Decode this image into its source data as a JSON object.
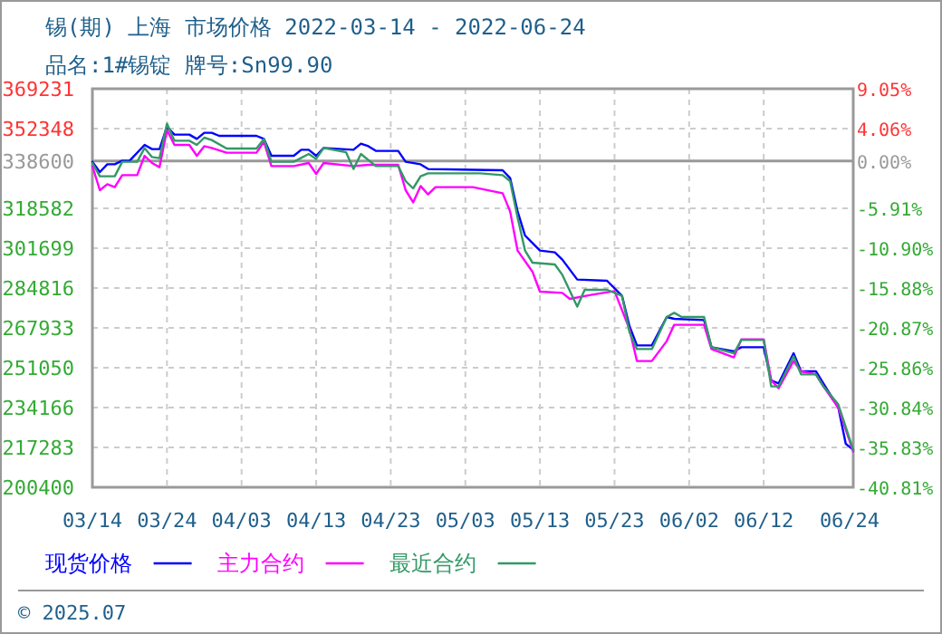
{
  "chart_data": {
    "type": "line",
    "title": "锡(期) 上海 市场价格 2022-03-14 - 2022-06-24",
    "subtitle": "品名:1#锡锭 牌号:Sn99.90",
    "xlim": [
      "2022-03-14",
      "2022-06-24"
    ],
    "xticks": [
      {
        "value": "2022-03-14",
        "label": "03/14"
      },
      {
        "value": "2022-03-24",
        "label": "03/24"
      },
      {
        "value": "2022-04-03",
        "label": "04/03"
      },
      {
        "value": "2022-04-13",
        "label": "04/13"
      },
      {
        "value": "2022-04-23",
        "label": "04/23"
      },
      {
        "value": "2022-05-03",
        "label": "05/03"
      },
      {
        "value": "2022-05-13",
        "label": "05/13"
      },
      {
        "value": "2022-05-23",
        "label": "05/23"
      },
      {
        "value": "2022-06-02",
        "label": "06/02"
      },
      {
        "value": "2022-06-12",
        "label": "06/12"
      },
      {
        "value": "2022-06-24",
        "label": "06/24"
      }
    ],
    "ylim": [
      200400,
      369231
    ],
    "yticks": [
      200400,
      217283,
      234166,
      251050,
      267933,
      284816,
      301699,
      318582,
      338600,
      352348,
      369231
    ],
    "y2lim": [
      -40.81,
      9.05
    ],
    "y2ticks": [
      {
        "value": -40.81,
        "label": "-40.81%"
      },
      {
        "value": -35.83,
        "label": "-35.83%"
      },
      {
        "value": -30.84,
        "label": "-30.84%"
      },
      {
        "value": -25.86,
        "label": "-25.86%"
      },
      {
        "value": -20.87,
        "label": "-20.87%"
      },
      {
        "value": -15.88,
        "label": "-15.88%"
      },
      {
        "value": -10.9,
        "label": "-10.90%"
      },
      {
        "value": -5.91,
        "label": "-5.91%"
      },
      {
        "value": 0,
        "label": "0.00%"
      },
      {
        "value": 4.06,
        "label": "4.06%"
      },
      {
        "value": 9.05,
        "label": "9.05%"
      }
    ],
    "grid": true,
    "legend": "bottom",
    "ref_lines": [
      {
        "axis": "y2",
        "value": 0,
        "color": "#999999"
      }
    ],
    "annotations": [
      "© 2025.07"
    ],
    "series": [
      {
        "name": "现货价格",
        "color": "#0000ff",
        "x": [
          "2022-03-14",
          "2022-03-15",
          "2022-03-16",
          "2022-03-17",
          "2022-03-18",
          "2022-03-19",
          "2022-03-21",
          "2022-03-22",
          "2022-03-23",
          "2022-03-24",
          "2022-03-25",
          "2022-03-27",
          "2022-03-28",
          "2022-03-29",
          "2022-03-30",
          "2022-03-31",
          "2022-04-05",
          "2022-04-06",
          "2022-04-07",
          "2022-04-10",
          "2022-04-11",
          "2022-04-12",
          "2022-04-13",
          "2022-04-14",
          "2022-04-18",
          "2022-04-19",
          "2022-04-20",
          "2022-04-21",
          "2022-04-24",
          "2022-04-25",
          "2022-04-27",
          "2022-04-28",
          "2022-05-08",
          "2022-05-09",
          "2022-05-10",
          "2022-05-11",
          "2022-05-13",
          "2022-05-15",
          "2022-05-16",
          "2022-05-18",
          "2022-05-22",
          "2022-05-24",
          "2022-05-25",
          "2022-05-26",
          "2022-05-28",
          "2022-05-30",
          "2022-05-31",
          "2022-06-04",
          "2022-06-05",
          "2022-06-08",
          "2022-06-09",
          "2022-06-12",
          "2022-06-13",
          "2022-06-14",
          "2022-06-16",
          "2022-06-17",
          "2022-06-19",
          "2022-06-20",
          "2022-06-22",
          "2022-06-23",
          "2022-06-24"
        ],
        "values": [
          338305,
          333931,
          337230,
          337230,
          338765,
          338765,
          345442,
          343677,
          343677,
          353116,
          349816,
          349816,
          347974,
          350583,
          350583,
          349279,
          349279,
          347974,
          340837,
          340837,
          343370,
          343370,
          340837,
          344137,
          343370,
          345979,
          344904,
          342909,
          342909,
          338305,
          337230,
          335235,
          334698,
          331398,
          317278,
          307072,
          300702,
          299935,
          296865,
          288424,
          287887,
          281517,
          268702,
          260490,
          260490,
          272539,
          271771,
          271234,
          259723,
          257958,
          259723,
          259723,
          245680,
          244375,
          257191,
          249517,
          249517,
          244375,
          234169,
          218821,
          216288
        ]
      },
      {
        "name": "主力合约",
        "color": "#ff00ff",
        "x": [
          "2022-03-14",
          "2022-03-15",
          "2022-03-16",
          "2022-03-17",
          "2022-03-18",
          "2022-03-20",
          "2022-03-21",
          "2022-03-22",
          "2022-03-23",
          "2022-03-24",
          "2022-03-25",
          "2022-03-27",
          "2022-03-28",
          "2022-03-29",
          "2022-03-30",
          "2022-04-01",
          "2022-04-05",
          "2022-04-06",
          "2022-04-07",
          "2022-04-10",
          "2022-04-12",
          "2022-04-13",
          "2022-04-14",
          "2022-04-18",
          "2022-04-20",
          "2022-04-24",
          "2022-04-25",
          "2022-04-26",
          "2022-04-27",
          "2022-04-28",
          "2022-04-29",
          "2022-05-04",
          "2022-05-08",
          "2022-05-09",
          "2022-05-10",
          "2022-05-12",
          "2022-05-13",
          "2022-05-16",
          "2022-05-17",
          "2022-05-20",
          "2022-05-23",
          "2022-05-25",
          "2022-05-26",
          "2022-05-28",
          "2022-05-30",
          "2022-05-31",
          "2022-06-04",
          "2022-06-05",
          "2022-06-08",
          "2022-06-09",
          "2022-06-12",
          "2022-06-13",
          "2022-06-14",
          "2022-06-16",
          "2022-06-17",
          "2022-06-19",
          "2022-06-20",
          "2022-06-22",
          "2022-06-24"
        ],
        "values": [
          336463,
          326257,
          328789,
          327561,
          332626,
          332626,
          340837,
          337768,
          336003,
          351811,
          345442,
          345442,
          340837,
          344904,
          344137,
          342142,
          342142,
          346746,
          336463,
          336463,
          337768,
          333163,
          337768,
          336463,
          337000,
          337000,
          326257,
          321115,
          328022,
          324492,
          327561,
          327561,
          324952,
          317278,
          300702,
          291724,
          283282,
          282745,
          280213,
          281978,
          283512,
          267397,
          253891,
          253891,
          262332,
          269239,
          269239,
          258956,
          255426,
          263100,
          263100,
          245680,
          242380,
          253891,
          249517,
          248212,
          243147,
          234169,
          215521
        ]
      },
      {
        "name": "最近合约",
        "color": "#339966",
        "x": [
          "2022-03-14",
          "2022-03-15",
          "2022-03-17",
          "2022-03-18",
          "2022-03-20",
          "2022-03-21",
          "2022-03-22",
          "2022-03-23",
          "2022-03-24",
          "2022-03-25",
          "2022-03-27",
          "2022-03-28",
          "2022-03-29",
          "2022-03-30",
          "2022-04-01",
          "2022-04-05",
          "2022-04-06",
          "2022-04-07",
          "2022-04-10",
          "2022-04-12",
          "2022-04-13",
          "2022-04-14",
          "2022-04-17",
          "2022-04-18",
          "2022-04-19",
          "2022-04-21",
          "2022-04-24",
          "2022-04-25",
          "2022-04-26",
          "2022-04-27",
          "2022-04-28",
          "2022-05-05",
          "2022-05-08",
          "2022-05-09",
          "2022-05-10",
          "2022-05-11",
          "2022-05-12",
          "2022-05-15",
          "2022-05-16",
          "2022-05-18",
          "2022-05-19",
          "2022-05-22",
          "2022-05-24",
          "2022-05-25",
          "2022-05-26",
          "2022-05-28",
          "2022-05-30",
          "2022-05-31",
          "2022-06-01",
          "2022-06-04",
          "2022-06-05",
          "2022-06-08",
          "2022-06-09",
          "2022-06-12",
          "2022-06-13",
          "2022-06-14",
          "2022-06-16",
          "2022-06-17",
          "2022-06-19",
          "2022-06-20",
          "2022-06-22",
          "2022-06-24"
        ],
        "values": [
          337768,
          332166,
          332166,
          338305,
          338305,
          344137,
          340300,
          339840,
          354420,
          347207,
          347207,
          345442,
          348511,
          347514,
          343907,
          343907,
          347974,
          338305,
          338305,
          341605,
          339533,
          344137,
          342372,
          335235,
          341605,
          336463,
          336463,
          330094,
          327024,
          332166,
          333393,
          333393,
          332626,
          330094,
          314746,
          300702,
          295561,
          294793,
          290419,
          276913,
          284050,
          284050,
          281517,
          266169,
          258956,
          258956,
          272539,
          274304,
          272539,
          272539,
          259723,
          257191,
          262793,
          262793,
          243147,
          243147,
          255886,
          248212,
          248212,
          243147,
          235473,
          216288
        ]
      }
    ]
  }
}
